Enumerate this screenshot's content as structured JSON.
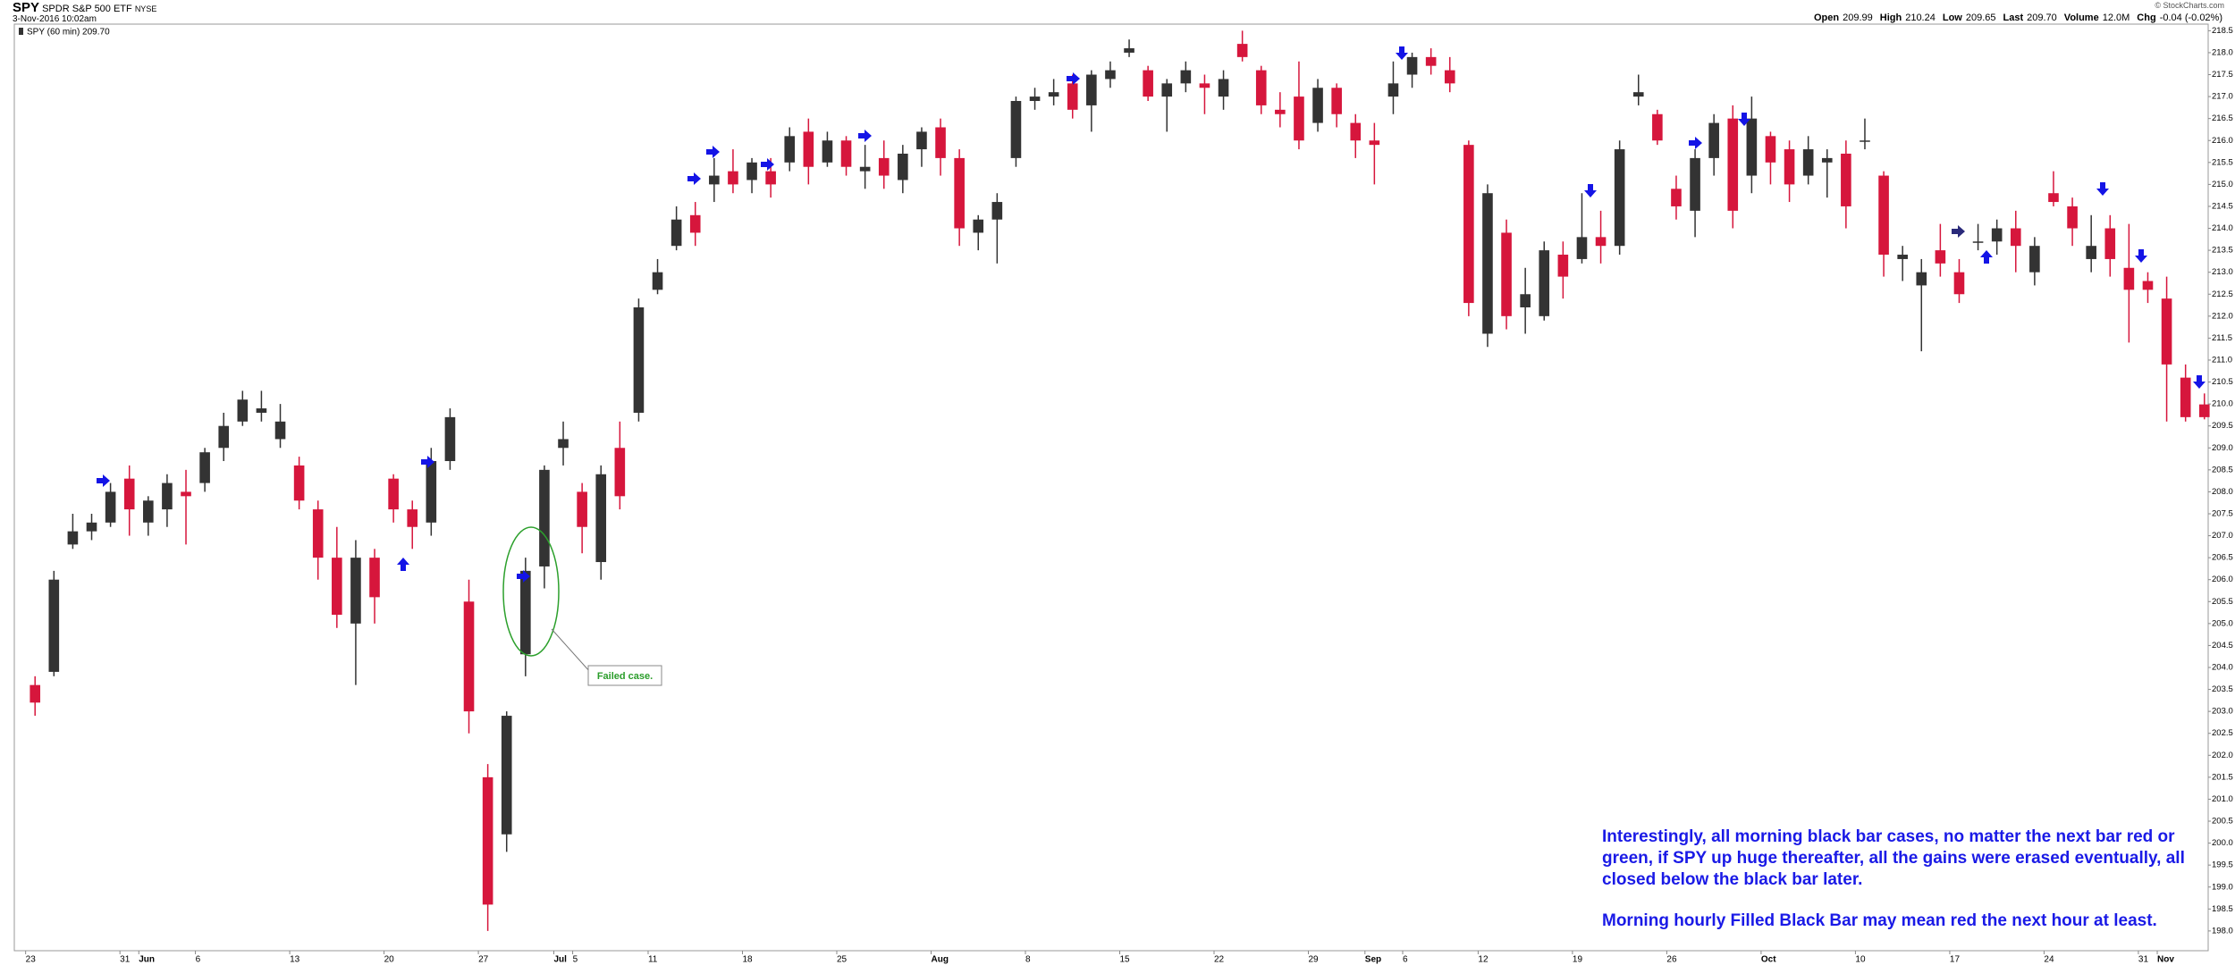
{
  "header": {
    "symbol": "SPY",
    "name": "SPDR S&P 500 ETF",
    "exchange": "NYSE",
    "date": "3-Nov-2016 10:02am",
    "copyright": "© StockCharts.com",
    "stats": [
      {
        "label": "Open",
        "value": "209.99"
      },
      {
        "label": "High",
        "value": "210.24"
      },
      {
        "label": "Low",
        "value": "209.65"
      },
      {
        "label": "Last",
        "value": "209.70"
      },
      {
        "label": "Volume",
        "value": "12.0M"
      },
      {
        "label": "Chg",
        "value": "-0.04 (-0.02%)"
      }
    ]
  },
  "chart_data": {
    "type": "candlestick",
    "legend": "SPY (60 min) 209.70",
    "up_color": "#333333",
    "down_color": "#d6163c",
    "annotations": {
      "callout": "Failed case.",
      "note": "Interestingly, all morning black bar cases, no matter the next bar red or green, if SPY up huge thereafter, all the gains were erased eventually, all closed below the black bar later.",
      "note2": "Morning hourly Filled Black Bar may mean red the next hour at least."
    },
    "xlim": [
      0.4,
      116.7
    ],
    "xticks": [
      {
        "value": 1,
        "label": "23"
      },
      {
        "value": 6,
        "label": "31"
      },
      {
        "value": 7,
        "label": "Jun"
      },
      {
        "value": 10,
        "label": "6"
      },
      {
        "value": 15,
        "label": "13"
      },
      {
        "value": 20,
        "label": "20"
      },
      {
        "value": 25,
        "label": "27"
      },
      {
        "value": 29,
        "label": "Jul"
      },
      {
        "value": 30,
        "label": "5"
      },
      {
        "value": 34,
        "label": "11"
      },
      {
        "value": 39,
        "label": "18"
      },
      {
        "value": 44,
        "label": "25"
      },
      {
        "value": 49,
        "label": "Aug"
      },
      {
        "value": 54,
        "label": "8"
      },
      {
        "value": 59,
        "label": "15"
      },
      {
        "value": 64,
        "label": "22"
      },
      {
        "value": 69,
        "label": "29"
      },
      {
        "value": 72,
        "label": "Sep"
      },
      {
        "value": 74,
        "label": "6"
      },
      {
        "value": 78,
        "label": "12"
      },
      {
        "value": 83,
        "label": "19"
      },
      {
        "value": 88,
        "label": "26"
      },
      {
        "value": 93,
        "label": "Oct"
      },
      {
        "value": 98,
        "label": "10"
      },
      {
        "value": 103,
        "label": "17"
      },
      {
        "value": 108,
        "label": "24"
      },
      {
        "value": 113,
        "label": "31"
      },
      {
        "value": 114,
        "label": "Nov"
      }
    ],
    "ylim": [
      197.55,
      218.65
    ],
    "yticks": [
      {
        "value": 198,
        "label": "198.0"
      },
      198.5,
      {
        "value": 199,
        "label": "199.0"
      },
      199.5,
      {
        "value": 200,
        "label": "200.0"
      },
      200.5,
      {
        "value": 201,
        "label": "201.0"
      },
      201.5,
      {
        "value": 202,
        "label": "202.0"
      },
      202.5,
      {
        "value": 203,
        "label": "203.0"
      },
      203.5,
      {
        "value": 204,
        "label": "204.0"
      },
      204.5,
      {
        "value": 205,
        "label": "205.0"
      },
      205.5,
      {
        "value": 206,
        "label": "206.0"
      },
      206.5,
      {
        "value": 207,
        "label": "207.0"
      },
      207.5,
      {
        "value": 208,
        "label": "208.0"
      },
      208.5,
      {
        "value": 209,
        "label": "209.0"
      },
      209.5,
      {
        "value": 210,
        "label": "210.0"
      },
      210.5,
      {
        "value": 211,
        "label": "211.0"
      },
      211.5,
      {
        "value": 212,
        "label": "212.0"
      },
      212.5,
      {
        "value": 213,
        "label": "213.0"
      },
      213.5,
      {
        "value": 214,
        "label": "214.0"
      },
      214.5,
      {
        "value": 215,
        "label": "215.0"
      },
      215.5,
      {
        "value": 216,
        "label": "216.0"
      },
      216.5,
      {
        "value": 217,
        "label": "217.0"
      },
      217.5,
      {
        "value": 218,
        "label": "218.0"
      },
      218.5
    ],
    "candles": {
      "x": [
        1.5,
        2.5,
        3.5,
        4.5,
        5.5,
        6.5,
        7.5,
        8.5,
        9.5,
        10.5,
        11.5,
        12.5,
        13.5,
        14.5,
        15.5,
        16.5,
        17.5,
        18.5,
        19.5,
        20.5,
        21.5,
        22.5,
        23.5,
        24.5,
        25.5,
        26.5,
        27.5,
        28.5,
        29.5,
        30.5,
        31.5,
        32.5,
        33.5,
        34.5,
        35.5,
        36.5,
        37.5,
        38.5,
        39.5,
        40.5,
        41.5,
        42.5,
        43.5,
        44.5,
        45.5,
        46.5,
        47.5,
        48.5,
        49.5,
        50.5,
        51.5,
        52.5,
        53.5,
        54.5,
        55.5,
        56.5,
        57.5,
        58.5,
        59.5,
        60.5,
        61.5,
        62.5,
        63.5,
        64.5,
        65.5,
        66.5,
        67.5,
        68.5,
        69.5,
        70.5,
        71.5,
        72.5,
        73.5,
        74.5,
        75.5,
        76.5,
        77.5,
        78.5,
        79.5,
        80.5,
        81.5,
        82.5,
        83.5,
        84.5,
        85.5,
        86.5,
        87.5,
        88.5,
        89.5,
        90.5,
        91.5,
        92.5,
        93.5,
        94.5,
        95.5,
        96.5,
        97.5,
        98.5,
        99.5,
        100.5,
        101.5,
        102.5,
        103.5,
        104.5,
        105.5,
        106.5,
        107.5,
        108.5,
        109.5,
        110.5,
        111.5,
        112.5,
        113.5,
        114.5,
        115.5,
        116.5
      ],
      "open": [
        203.6,
        203.9,
        206.8,
        207.1,
        207.3,
        208.3,
        207.3,
        207.6,
        208.0,
        208.2,
        209.0,
        209.6,
        209.8,
        209.2,
        208.6,
        207.6,
        206.5,
        205.0,
        206.5,
        208.3,
        207.6,
        207.3,
        208.7,
        205.5,
        201.5,
        200.2,
        204.3,
        206.3,
        209.0,
        208.0,
        206.4,
        209.0,
        209.8,
        212.6,
        213.6,
        214.3,
        215.0,
        215.3,
        215.1,
        215.3,
        215.5,
        216.2,
        215.5,
        216.0,
        215.3,
        215.6,
        215.1,
        215.8,
        216.3,
        215.6,
        213.9,
        214.2,
        215.6,
        216.9,
        217.0,
        217.3,
        216.8,
        217.4,
        218.0,
        217.6,
        217.0,
        217.3,
        217.3,
        217.0,
        218.2,
        217.6,
        216.7,
        217.0,
        216.4,
        217.2,
        216.4,
        216.0,
        217.0,
        217.5,
        217.9,
        217.6,
        215.9,
        211.6,
        213.9,
        212.2,
        212.0,
        213.4,
        213.3,
        213.8,
        213.6,
        217.0,
        216.6,
        214.9,
        214.4,
        215.6,
        216.5,
        215.2,
        216.1,
        215.8,
        215.2,
        215.5,
        215.7,
        216.0,
        215.2,
        213.3,
        212.7,
        213.5,
        213.0,
        213.7,
        213.7,
        214.0,
        213.0,
        214.8,
        214.5,
        213.3,
        214.0,
        213.1,
        212.8,
        212.4,
        210.6,
        209.99
      ],
      "high": [
        203.8,
        206.2,
        207.5,
        207.5,
        208.2,
        208.6,
        207.9,
        208.4,
        208.5,
        209.0,
        209.8,
        210.3,
        210.3,
        210.0,
        208.8,
        207.8,
        207.2,
        206.9,
        206.7,
        208.4,
        207.8,
        209.0,
        209.9,
        206.0,
        201.8,
        203.0,
        206.5,
        208.6,
        209.6,
        208.2,
        208.6,
        209.6,
        212.4,
        213.3,
        214.5,
        214.6,
        215.6,
        215.8,
        215.6,
        215.6,
        216.3,
        216.5,
        216.2,
        216.1,
        215.9,
        216.0,
        215.9,
        216.3,
        216.5,
        215.8,
        214.3,
        214.8,
        217.0,
        217.2,
        217.4,
        217.5,
        217.6,
        217.8,
        218.3,
        217.7,
        217.4,
        217.8,
        217.5,
        217.6,
        218.5,
        217.7,
        217.1,
        217.8,
        217.4,
        217.3,
        216.6,
        216.4,
        217.8,
        218.0,
        218.1,
        217.9,
        216.0,
        215.0,
        214.2,
        213.1,
        213.7,
        213.7,
        214.8,
        214.4,
        216.0,
        217.5,
        216.7,
        215.2,
        215.8,
        216.6,
        216.8,
        217.0,
        216.2,
        216.0,
        216.1,
        215.8,
        216.0,
        216.5,
        215.3,
        213.6,
        213.3,
        214.1,
        213.3,
        214.1,
        214.2,
        214.4,
        213.8,
        215.3,
        214.7,
        214.3,
        214.3,
        214.1,
        213.0,
        212.9,
        210.9,
        210.24
      ],
      "low": [
        202.9,
        203.8,
        206.7,
        206.9,
        207.2,
        207.0,
        207.0,
        207.2,
        206.8,
        208.0,
        208.7,
        209.5,
        209.6,
        209.0,
        207.6,
        206.0,
        204.9,
        203.6,
        205.0,
        207.3,
        206.7,
        207.0,
        208.5,
        202.5,
        198.0,
        199.8,
        203.8,
        205.8,
        208.6,
        206.6,
        206.0,
        207.6,
        209.6,
        212.5,
        213.5,
        213.6,
        214.6,
        214.8,
        214.8,
        214.7,
        215.3,
        215.0,
        215.4,
        215.2,
        214.9,
        214.9,
        214.8,
        215.4,
        215.2,
        213.6,
        213.5,
        213.2,
        215.4,
        216.7,
        216.8,
        216.5,
        216.2,
        217.2,
        217.9,
        216.9,
        216.2,
        217.1,
        216.6,
        216.7,
        217.8,
        216.6,
        216.3,
        215.8,
        216.2,
        216.3,
        215.6,
        215.0,
        216.6,
        217.2,
        217.5,
        217.1,
        212.0,
        211.3,
        211.7,
        211.6,
        211.9,
        212.4,
        213.2,
        213.2,
        213.4,
        216.8,
        215.9,
        214.2,
        213.8,
        215.2,
        214.0,
        214.8,
        215.0,
        214.6,
        215.0,
        214.7,
        214.0,
        215.8,
        212.9,
        212.8,
        211.2,
        212.9,
        212.3,
        213.5,
        213.4,
        213.0,
        212.7,
        214.5,
        213.6,
        213.0,
        212.9,
        211.4,
        212.3,
        209.6,
        209.6,
        209.65
      ],
      "close": [
        203.2,
        206.0,
        207.1,
        207.3,
        208.0,
        207.6,
        207.8,
        208.2,
        207.9,
        208.9,
        209.5,
        210.1,
        209.9,
        209.6,
        207.8,
        206.5,
        205.2,
        206.5,
        205.6,
        207.6,
        207.2,
        208.7,
        209.7,
        203.0,
        198.6,
        202.9,
        206.2,
        208.5,
        209.2,
        207.2,
        208.4,
        207.9,
        212.2,
        213.0,
        214.2,
        213.9,
        215.2,
        215.0,
        215.5,
        215.0,
        216.1,
        215.4,
        216.0,
        215.4,
        215.4,
        215.2,
        215.7,
        216.2,
        215.6,
        214.0,
        214.2,
        214.6,
        216.9,
        217.0,
        217.1,
        216.7,
        217.5,
        217.6,
        218.1,
        217.0,
        217.3,
        217.6,
        217.2,
        217.4,
        217.9,
        216.8,
        216.6,
        216.0,
        217.2,
        216.6,
        216.0,
        215.9,
        217.3,
        217.9,
        217.7,
        217.3,
        212.3,
        214.8,
        212.0,
        212.5,
        213.5,
        212.9,
        213.8,
        213.6,
        215.8,
        217.1,
        216.0,
        214.5,
        215.6,
        216.4,
        214.4,
        216.5,
        215.5,
        215.0,
        215.8,
        215.6,
        214.5,
        216.0,
        213.4,
        213.4,
        213.0,
        213.2,
        212.5,
        213.7,
        214.0,
        213.6,
        213.6,
        214.6,
        214.0,
        213.6,
        213.3,
        212.6,
        212.6,
        210.9,
        209.7,
        209.7
      ]
    }
  }
}
